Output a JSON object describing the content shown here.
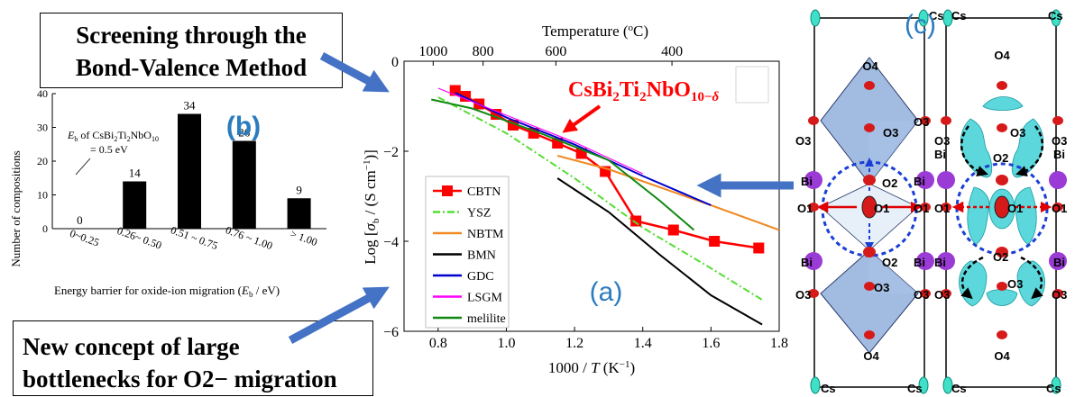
{
  "callouts": {
    "top_line1": "Screening through the",
    "top_line2": "Bond-Valence Method",
    "bottom_line1": "New concept of large",
    "bottom_line2": "bottlenecks for O2− migration"
  },
  "panel_labels": {
    "a": "(a)",
    "b": "(b)",
    "c": "(c)"
  },
  "colors": {
    "panel_label": "#2b7bbf",
    "arrow": "#4472c4",
    "highlight": "#ff0000"
  },
  "chart_data": [
    {
      "type": "bar",
      "panel": "b",
      "categories": [
        "0~0.25",
        "0.26~ 0.50",
        "0.51 ~ 0.75",
        "0.76 ~ 1.00",
        "> 1.00"
      ],
      "values": [
        0,
        14,
        34,
        26,
        9
      ],
      "xlabel": "Energy barrier for oxide-ion migration (E_b / eV)",
      "ylabel": "Number of compositions",
      "ylim": [
        0,
        40
      ],
      "yticks": [
        0,
        10,
        20,
        30,
        40
      ],
      "annotation": {
        "line1": "E_b of CsBi2Ti2NbO10",
        "line2": "= 0.5 eV"
      }
    },
    {
      "type": "line",
      "panel": "a",
      "xlabel": "1000 / T (K⁻¹)",
      "ylabel": "Log [σb / (S cm⁻¹)]",
      "top_axis_label": "Temperature (°C)",
      "top_ticks": [
        1000,
        800,
        600,
        400
      ],
      "xlim": [
        0.7,
        1.8
      ],
      "ylim": [
        -6,
        0
      ],
      "xticks": [
        0.8,
        1.0,
        1.2,
        1.4,
        1.6,
        1.8
      ],
      "yticks": [
        0,
        -2,
        -4,
        -6
      ],
      "annotation": "CsBi2Ti2NbO10−δ",
      "series": [
        {
          "name": "CBTN",
          "color": "#ff0000",
          "style": "solid-square",
          "x": [
            0.85,
            0.88,
            0.92,
            0.97,
            1.02,
            1.08,
            1.15,
            1.22,
            1.29,
            1.38,
            1.49,
            1.61,
            1.74
          ],
          "y": [
            -0.65,
            -0.78,
            -0.95,
            -1.18,
            -1.42,
            -1.6,
            -1.82,
            -2.05,
            -2.45,
            -3.55,
            -3.75,
            -4.0,
            -4.15
          ]
        },
        {
          "name": "YSZ",
          "color": "#55dd33",
          "style": "dashdot",
          "x": [
            0.8,
            1.0,
            1.2,
            1.4,
            1.6,
            1.75
          ],
          "y": [
            -0.8,
            -1.6,
            -2.6,
            -3.7,
            -4.6,
            -5.3
          ]
        },
        {
          "name": "NBTM",
          "color": "#f08a24",
          "style": "solid",
          "x": [
            1.15,
            1.3,
            1.45,
            1.6,
            1.8
          ],
          "y": [
            -2.1,
            -2.4,
            -2.8,
            -3.2,
            -3.75
          ]
        },
        {
          "name": "BMN",
          "color": "#000000",
          "style": "solid",
          "x": [
            1.15,
            1.3,
            1.45,
            1.6,
            1.75
          ],
          "y": [
            -2.6,
            -3.35,
            -4.3,
            -5.2,
            -5.85
          ]
        },
        {
          "name": "GDC",
          "color": "#0000cc",
          "style": "solid",
          "x": [
            0.85,
            1.0,
            1.2,
            1.4,
            1.6
          ],
          "y": [
            -0.7,
            -1.25,
            -1.85,
            -2.55,
            -3.2
          ]
        },
        {
          "name": "LSGM",
          "color": "#ff00ff",
          "style": "solid",
          "x": [
            0.8,
            1.0,
            1.2,
            1.4
          ],
          "y": [
            -0.6,
            -1.2,
            -1.8,
            -2.5
          ]
        },
        {
          "name": "melilite",
          "color": "#118811",
          "style": "solid",
          "x": [
            0.78,
            0.9,
            1.1,
            1.3,
            1.45,
            1.55
          ],
          "y": [
            -0.85,
            -1.05,
            -1.6,
            -2.2,
            -3.1,
            -3.75
          ]
        }
      ]
    }
  ],
  "structure": {
    "labels": {
      "cs": "Cs",
      "bi": "Bi",
      "o1": "O1",
      "o2": "O2",
      "o3": "O3",
      "o4": "O4"
    }
  }
}
